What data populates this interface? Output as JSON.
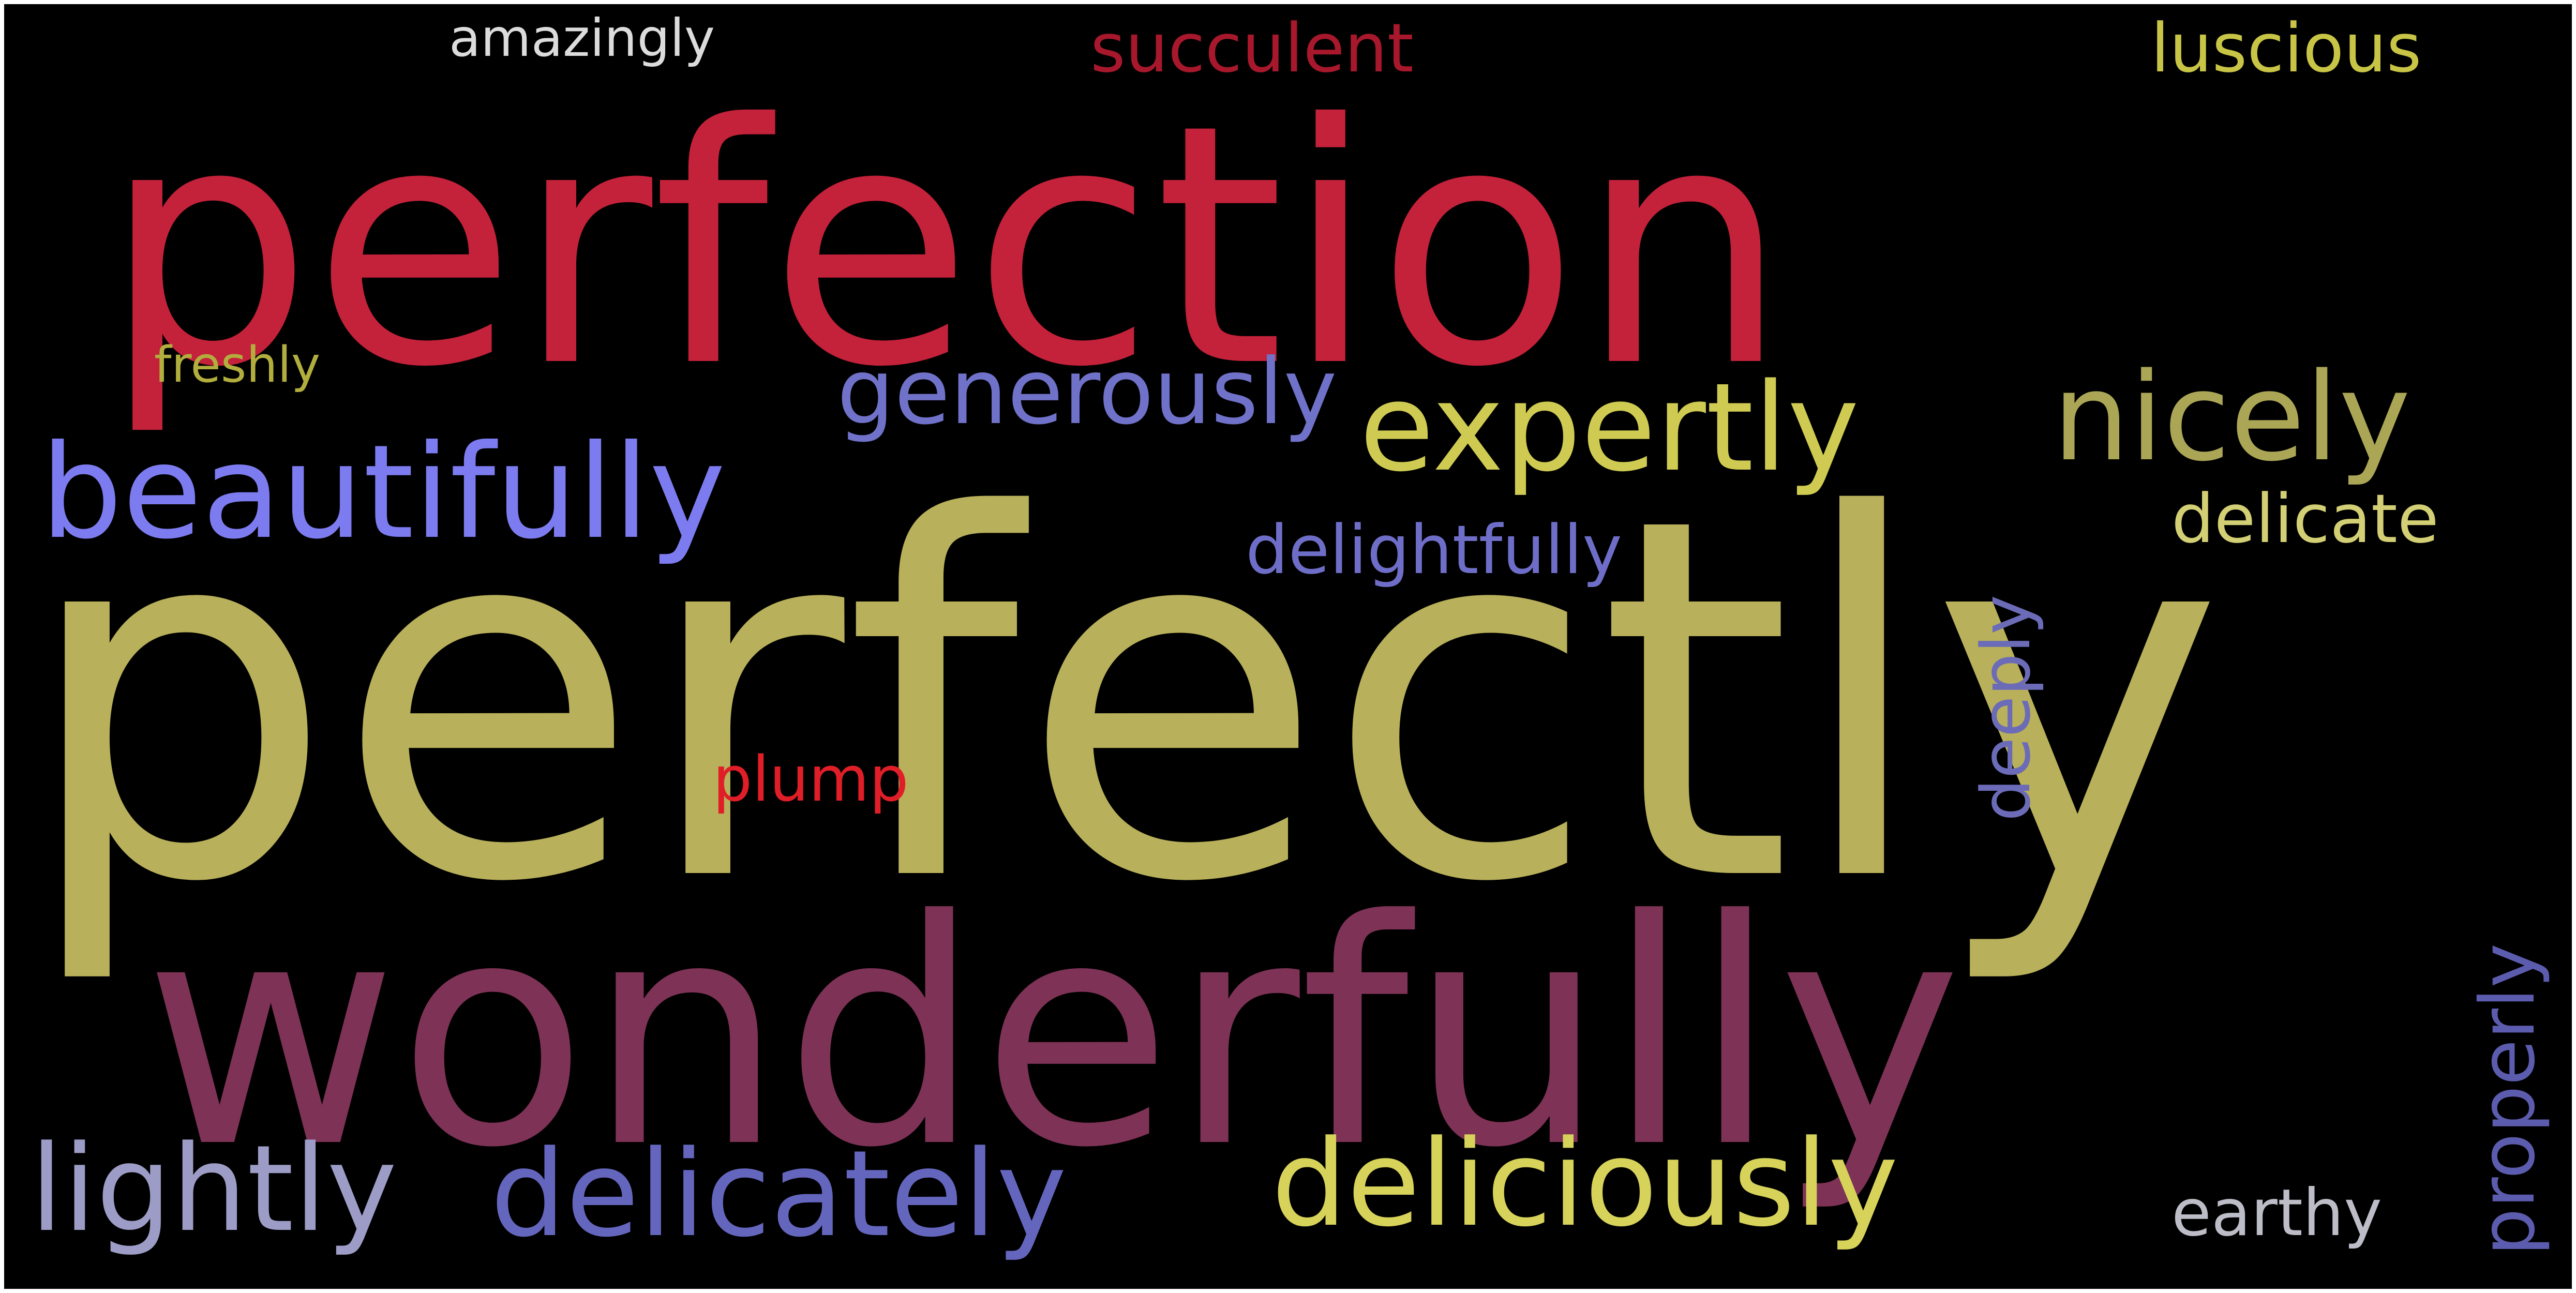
{
  "word_cloud": {
    "background_color": "#000000",
    "words": [
      {
        "id": "perfection",
        "text": "perfection",
        "color": "#C4213A",
        "vertical": false
      },
      {
        "id": "perfectly",
        "text": "perfectly",
        "color": "#B8B05A",
        "vertical": false
      },
      {
        "id": "wonderfully",
        "text": "wonderfully",
        "color": "#7E3256",
        "vertical": false
      },
      {
        "id": "beautifully",
        "text": "beautifully",
        "color": "#7C7CF0",
        "vertical": false
      },
      {
        "id": "expertly",
        "text": "expertly",
        "color": "#CFCB52",
        "vertical": false
      },
      {
        "id": "nicely",
        "text": "nicely",
        "color": "#ABA656",
        "vertical": false
      },
      {
        "id": "generously",
        "text": "generously",
        "color": "#6F72C8",
        "vertical": false
      },
      {
        "id": "lightly",
        "text": "lightly",
        "color": "#9C9CC6",
        "vertical": false
      },
      {
        "id": "delicately",
        "text": "delicately",
        "color": "#6466BE",
        "vertical": false
      },
      {
        "id": "deliciously",
        "text": "deliciously",
        "color": "#D7D25A",
        "vertical": false
      },
      {
        "id": "delightfully",
        "text": "delightfully",
        "color": "#6E6EC8",
        "vertical": false
      },
      {
        "id": "delicate",
        "text": "delicate",
        "color": "#D2CF74",
        "vertical": false
      },
      {
        "id": "luscious",
        "text": "luscious",
        "color": "#C8C446",
        "vertical": false
      },
      {
        "id": "succulent",
        "text": "succulent",
        "color": "#A8182C",
        "vertical": false
      },
      {
        "id": "amazingly",
        "text": "amazingly",
        "color": "#DCDCDC",
        "vertical": false
      },
      {
        "id": "freshly",
        "text": "freshly",
        "color": "#B2AE3E",
        "vertical": false
      },
      {
        "id": "plump",
        "text": "plump",
        "color": "#E01E28",
        "vertical": false
      },
      {
        "id": "deeply",
        "text": "deeply",
        "color": "#6B6BB8",
        "vertical": true
      },
      {
        "id": "properly",
        "text": "properly",
        "color": "#5C5CAE",
        "vertical": true
      },
      {
        "id": "earthy",
        "text": "earthy",
        "color": "#BDBDC8",
        "vertical": false
      }
    ]
  }
}
